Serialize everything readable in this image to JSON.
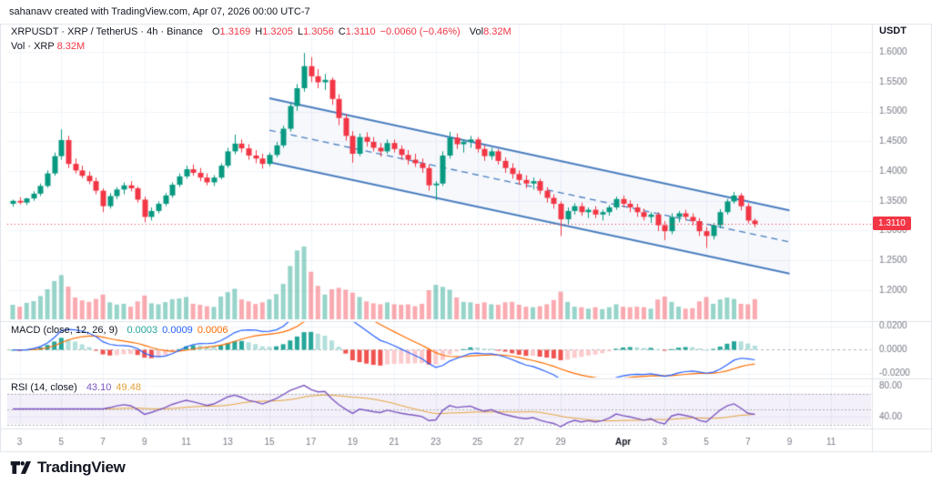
{
  "attribution": "sahanavv created with TradingView.com, Apr 07, 2026 00:00 UTC-7",
  "legend": {
    "title": "XRPUSDT · XRP / TetherUS · 4h · Binance",
    "o_label": "O",
    "o": "1.3169",
    "h_label": "H",
    "h": "1.3205",
    "l_label": "L",
    "l": "1.3056",
    "c_label": "C",
    "c": "1.3110",
    "change": "−0.0060 (−0.46%)",
    "vol_label": "Vol",
    "vol": "8.32M",
    "vol_line_label": "Vol · XRP",
    "vol_line_value": "8.32M"
  },
  "macd_legend": {
    "title": "MACD (close, 12, 26, 9)",
    "hist": "0.0003",
    "macd": "0.0009",
    "signal": "0.0006"
  },
  "rsi_legend": {
    "title": "RSI (14, close)",
    "value": "43.10",
    "ma": "49.48"
  },
  "footer": {
    "logo_text": "TradingView"
  },
  "colors": {
    "up": "#089981",
    "down": "#f23645",
    "vol_up": "rgba(8,153,129,0.42)",
    "vol_down": "rgba(242,54,69,0.42)",
    "channel": "#4a7ebf",
    "channel_fill": "rgba(74,126,191,0.05)",
    "macd_line": "#2962ff",
    "signal_line": "#ff6d00",
    "hist_up": "#26a69a",
    "hist_up_weak": "#b2dfdb",
    "hist_down": "#ef5350",
    "hist_down_weak": "#fccbcd",
    "rsi": "#7e57c2",
    "rsi_ma": "#e5a43b",
    "rsi_band": "rgba(126,87,194,0.09)",
    "grid": "#f0f3fa",
    "frame": "#e0e3eb",
    "axis_text": "#787b86",
    "text": "#131722",
    "price_line": "#f23645"
  },
  "chart_data": {
    "type": "candlestick",
    "title": "XRPUSDT · XRP / TetherUS · 4h · Binance",
    "interval": "4h",
    "price_axis": {
      "unit": "USDT",
      "min": 1.2,
      "max": 1.6,
      "ticks": [
        "1.6000",
        "1.5500",
        "1.5000",
        "1.4500",
        "1.4000",
        "1.3500",
        "1.3000",
        "1.2500",
        "1.2000"
      ]
    },
    "last_price": {
      "value": 1.311,
      "label": "1.3110",
      "direction": "down"
    },
    "x_labels": [
      {
        "t": "3",
        "d": 0
      },
      {
        "t": "5",
        "d": 2
      },
      {
        "t": "7",
        "d": 4
      },
      {
        "t": "9",
        "d": 6
      },
      {
        "t": "11",
        "d": 8
      },
      {
        "t": "13",
        "d": 10
      },
      {
        "t": "15",
        "d": 12
      },
      {
        "t": "17",
        "d": 14
      },
      {
        "t": "19",
        "d": 16
      },
      {
        "t": "21",
        "d": 18
      },
      {
        "t": "23",
        "d": 20
      },
      {
        "t": "25",
        "d": 22
      },
      {
        "t": "27",
        "d": 24
      },
      {
        "t": "29",
        "d": 26
      },
      {
        "t": "Apr",
        "d": 29,
        "major": true
      },
      {
        "t": "3",
        "d": 31
      },
      {
        "t": "5",
        "d": 33
      },
      {
        "t": "7",
        "d": 35
      },
      {
        "t": "9",
        "d": 37
      },
      {
        "t": "11",
        "d": 39
      }
    ],
    "volume_max_millions": 30,
    "candles": [
      [
        1.345,
        1.352,
        1.34,
        1.35,
        6.0
      ],
      [
        1.35,
        1.356,
        1.344,
        1.347,
        5.2
      ],
      [
        1.347,
        1.355,
        1.343,
        1.354,
        6.8
      ],
      [
        1.354,
        1.366,
        1.35,
        1.362,
        7.5
      ],
      [
        1.362,
        1.379,
        1.358,
        1.375,
        9.6
      ],
      [
        1.375,
        1.401,
        1.372,
        1.396,
        12.4
      ],
      [
        1.396,
        1.431,
        1.392,
        1.425,
        15.8
      ],
      [
        1.425,
        1.47,
        1.419,
        1.452,
        18.2
      ],
      [
        1.452,
        1.459,
        1.405,
        1.412,
        13.5
      ],
      [
        1.412,
        1.421,
        1.396,
        1.401,
        9.0
      ],
      [
        1.401,
        1.409,
        1.388,
        1.392,
        7.8
      ],
      [
        1.392,
        1.399,
        1.378,
        1.383,
        7.2
      ],
      [
        1.383,
        1.389,
        1.361,
        1.367,
        8.4
      ],
      [
        1.367,
        1.371,
        1.331,
        1.341,
        10.2
      ],
      [
        1.341,
        1.363,
        1.337,
        1.358,
        7.0
      ],
      [
        1.358,
        1.373,
        1.353,
        1.369,
        6.1
      ],
      [
        1.369,
        1.381,
        1.361,
        1.376,
        6.4
      ],
      [
        1.376,
        1.383,
        1.366,
        1.371,
        5.2
      ],
      [
        1.371,
        1.374,
        1.347,
        1.352,
        7.4
      ],
      [
        1.352,
        1.357,
        1.314,
        1.323,
        9.8
      ],
      [
        1.323,
        1.339,
        1.317,
        1.333,
        6.6
      ],
      [
        1.333,
        1.349,
        1.329,
        1.345,
        6.2
      ],
      [
        1.345,
        1.363,
        1.341,
        1.359,
        7.1
      ],
      [
        1.359,
        1.381,
        1.355,
        1.377,
        8.3
      ],
      [
        1.377,
        1.396,
        1.373,
        1.391,
        8.6
      ],
      [
        1.391,
        1.409,
        1.387,
        1.403,
        9.2
      ],
      [
        1.403,
        1.411,
        1.392,
        1.397,
        6.4
      ],
      [
        1.397,
        1.405,
        1.383,
        1.389,
        6.0
      ],
      [
        1.389,
        1.396,
        1.376,
        1.381,
        5.4
      ],
      [
        1.381,
        1.393,
        1.375,
        1.389,
        5.1
      ],
      [
        1.389,
        1.413,
        1.386,
        1.409,
        9.4
      ],
      [
        1.409,
        1.439,
        1.405,
        1.433,
        11.2
      ],
      [
        1.433,
        1.461,
        1.428,
        1.446,
        12.6
      ],
      [
        1.446,
        1.453,
        1.431,
        1.438,
        8.2
      ],
      [
        1.438,
        1.445,
        1.419,
        1.426,
        7.4
      ],
      [
        1.426,
        1.435,
        1.413,
        1.421,
        6.3
      ],
      [
        1.421,
        1.429,
        1.404,
        1.412,
        7.0
      ],
      [
        1.412,
        1.431,
        1.408,
        1.427,
        8.2
      ],
      [
        1.427,
        1.449,
        1.423,
        1.443,
        10.4
      ],
      [
        1.443,
        1.476,
        1.439,
        1.471,
        14.6
      ],
      [
        1.471,
        1.516,
        1.466,
        1.509,
        22.0
      ],
      [
        1.509,
        1.546,
        1.501,
        1.539,
        28.4
      ],
      [
        1.539,
        1.598,
        1.533,
        1.576,
        30.0
      ],
      [
        1.576,
        1.591,
        1.549,
        1.559,
        19.6
      ],
      [
        1.559,
        1.571,
        1.539,
        1.549,
        13.8
      ],
      [
        1.549,
        1.563,
        1.536,
        1.553,
        10.2
      ],
      [
        1.553,
        1.557,
        1.511,
        1.521,
        12.4
      ],
      [
        1.521,
        1.529,
        1.477,
        1.489,
        13.0
      ],
      [
        1.489,
        1.496,
        1.451,
        1.459,
        12.2
      ],
      [
        1.459,
        1.467,
        1.414,
        1.429,
        11.0
      ],
      [
        1.429,
        1.463,
        1.425,
        1.457,
        9.2
      ],
      [
        1.457,
        1.465,
        1.441,
        1.449,
        7.4
      ],
      [
        1.449,
        1.457,
        1.433,
        1.439,
        6.6
      ],
      [
        1.439,
        1.447,
        1.424,
        1.433,
        6.2
      ],
      [
        1.433,
        1.453,
        1.429,
        1.447,
        7.0
      ],
      [
        1.447,
        1.453,
        1.431,
        1.437,
        6.2
      ],
      [
        1.437,
        1.443,
        1.419,
        1.427,
        6.0
      ],
      [
        1.427,
        1.435,
        1.411,
        1.419,
        6.2
      ],
      [
        1.419,
        1.429,
        1.407,
        1.413,
        5.4
      ],
      [
        1.413,
        1.421,
        1.397,
        1.405,
        6.4
      ],
      [
        1.405,
        1.411,
        1.367,
        1.376,
        12.0
      ],
      [
        1.376,
        1.383,
        1.351,
        1.379,
        14.2
      ],
      [
        1.379,
        1.433,
        1.375,
        1.426,
        13.4
      ],
      [
        1.426,
        1.466,
        1.421,
        1.456,
        12.2
      ],
      [
        1.456,
        1.463,
        1.437,
        1.445,
        9.0
      ],
      [
        1.445,
        1.453,
        1.431,
        1.449,
        7.2
      ],
      [
        1.449,
        1.459,
        1.439,
        1.453,
        7.0
      ],
      [
        1.453,
        1.457,
        1.431,
        1.437,
        6.4
      ],
      [
        1.437,
        1.443,
        1.417,
        1.425,
        7.0
      ],
      [
        1.425,
        1.439,
        1.419,
        1.433,
        6.2
      ],
      [
        1.433,
        1.437,
        1.411,
        1.417,
        6.0
      ],
      [
        1.417,
        1.423,
        1.397,
        1.405,
        7.0
      ],
      [
        1.405,
        1.413,
        1.387,
        1.395,
        7.2
      ],
      [
        1.395,
        1.401,
        1.377,
        1.385,
        6.0
      ],
      [
        1.385,
        1.393,
        1.371,
        1.379,
        5.2
      ],
      [
        1.379,
        1.389,
        1.369,
        1.383,
        5.0
      ],
      [
        1.383,
        1.387,
        1.361,
        1.367,
        5.4
      ],
      [
        1.367,
        1.373,
        1.347,
        1.355,
        6.2
      ],
      [
        1.355,
        1.361,
        1.337,
        1.345,
        8.0
      ],
      [
        1.345,
        1.349,
        1.291,
        1.319,
        11.4
      ],
      [
        1.319,
        1.339,
        1.311,
        1.333,
        7.2
      ],
      [
        1.333,
        1.346,
        1.327,
        1.341,
        5.2
      ],
      [
        1.341,
        1.347,
        1.325,
        1.331,
        5.0
      ],
      [
        1.331,
        1.339,
        1.321,
        1.335,
        4.4
      ],
      [
        1.335,
        1.341,
        1.321,
        1.327,
        5.0
      ],
      [
        1.327,
        1.335,
        1.317,
        1.331,
        4.2
      ],
      [
        1.331,
        1.343,
        1.325,
        1.339,
        5.0
      ],
      [
        1.339,
        1.357,
        1.335,
        1.353,
        6.2
      ],
      [
        1.353,
        1.359,
        1.339,
        1.345,
        5.2
      ],
      [
        1.345,
        1.351,
        1.331,
        1.339,
        5.0
      ],
      [
        1.339,
        1.345,
        1.323,
        1.331,
        5.2
      ],
      [
        1.331,
        1.337,
        1.317,
        1.323,
        5.0
      ],
      [
        1.323,
        1.331,
        1.313,
        1.327,
        4.4
      ],
      [
        1.327,
        1.331,
        1.299,
        1.309,
        8.2
      ],
      [
        1.309,
        1.316,
        1.284,
        1.299,
        9.4
      ],
      [
        1.299,
        1.329,
        1.294,
        1.323,
        7.2
      ],
      [
        1.323,
        1.333,
        1.314,
        1.329,
        5.2
      ],
      [
        1.329,
        1.335,
        1.317,
        1.323,
        4.4
      ],
      [
        1.323,
        1.329,
        1.309,
        1.316,
        4.6
      ],
      [
        1.316,
        1.321,
        1.291,
        1.299,
        7.4
      ],
      [
        1.299,
        1.306,
        1.271,
        1.291,
        9.2
      ],
      [
        1.291,
        1.313,
        1.285,
        1.309,
        6.4
      ],
      [
        1.309,
        1.336,
        1.304,
        1.331,
        8.2
      ],
      [
        1.331,
        1.353,
        1.327,
        1.349,
        9.0
      ],
      [
        1.349,
        1.365,
        1.345,
        1.359,
        8.4
      ],
      [
        1.359,
        1.363,
        1.334,
        1.341,
        6.4
      ],
      [
        1.341,
        1.346,
        1.312,
        1.3169,
        6.2
      ],
      [
        1.3169,
        1.3205,
        1.3056,
        1.311,
        8.32
      ]
    ],
    "channel": {
      "upper": {
        "i1": 37,
        "p1": 1.522,
        "i2": 112,
        "p2": 1.334
      },
      "lower": {
        "i1": 37,
        "p1": 1.415,
        "i2": 112,
        "p2": 1.228
      }
    },
    "macd_axis": {
      "ticks": [
        "0.0200",
        "0.0000",
        "-0.0200"
      ],
      "range": [
        -0.02,
        0.02
      ]
    },
    "rsi_axis": {
      "ticks": [
        "80.00",
        "40.00"
      ],
      "bands": [
        70,
        50,
        30
      ]
    },
    "indicators": [
      {
        "name": "MACD",
        "source": "close",
        "params": [
          12,
          26,
          9
        ],
        "last": {
          "hist": 0.0003,
          "macd": 0.0009,
          "signal": 0.0006
        }
      },
      {
        "name": "RSI",
        "source": "close",
        "params": [
          14
        ],
        "last": {
          "rsi": 43.1,
          "ma": 49.48
        }
      }
    ]
  }
}
